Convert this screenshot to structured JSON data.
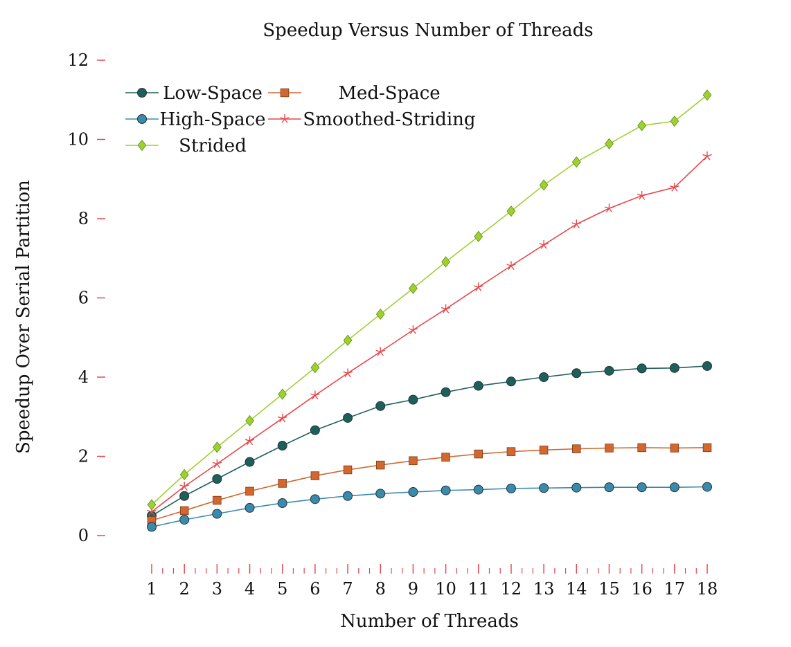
{
  "chart_data": {
    "type": "line",
    "title": "Speedup Versus Number of Threads",
    "xlabel": "Number of Threads",
    "ylabel": "Speedup Over Serial Partition",
    "x": [
      1,
      2,
      3,
      4,
      5,
      6,
      7,
      8,
      9,
      10,
      11,
      12,
      13,
      14,
      15,
      16,
      17,
      18
    ],
    "xlim": [
      1,
      18
    ],
    "ylim": [
      -0.8,
      12.4
    ],
    "yticks": [
      0,
      2,
      4,
      6,
      8,
      10,
      12
    ],
    "grid": false,
    "legend_position": "top-left",
    "axis_tick_color": "#e8474b",
    "series": [
      {
        "name": "Low-Space",
        "color": "#1e5f5b",
        "marker": "circle",
        "values": [
          0.5,
          1.0,
          1.43,
          1.86,
          2.27,
          2.66,
          2.97,
          3.27,
          3.43,
          3.62,
          3.78,
          3.89,
          4.0,
          4.1,
          4.16,
          4.22,
          4.23,
          4.28
        ]
      },
      {
        "name": "Med-Space",
        "color": "#d2672f",
        "marker": "square",
        "values": [
          0.38,
          0.63,
          0.89,
          1.12,
          1.32,
          1.51,
          1.66,
          1.78,
          1.89,
          1.98,
          2.06,
          2.12,
          2.16,
          2.19,
          2.21,
          2.22,
          2.21,
          2.22
        ]
      },
      {
        "name": "High-Space",
        "color": "#3a8aac",
        "marker": "circle",
        "values": [
          0.22,
          0.4,
          0.55,
          0.7,
          0.82,
          0.92,
          1.0,
          1.06,
          1.1,
          1.14,
          1.16,
          1.19,
          1.2,
          1.21,
          1.22,
          1.22,
          1.22,
          1.23
        ]
      },
      {
        "name": "Smoothed-Striding",
        "color": "#e8474b",
        "marker": "star",
        "values": [
          0.6,
          1.24,
          1.81,
          2.39,
          2.96,
          3.54,
          4.1,
          4.64,
          5.19,
          5.72,
          6.27,
          6.81,
          7.34,
          7.86,
          8.26,
          8.58,
          8.79,
          9.58
        ]
      },
      {
        "name": "Strided",
        "color": "#9ed12f",
        "marker": "diamond",
        "values": [
          0.78,
          1.54,
          2.23,
          2.9,
          3.57,
          4.24,
          4.93,
          5.59,
          6.24,
          6.91,
          7.55,
          8.19,
          8.85,
          9.43,
          9.89,
          10.35,
          10.46,
          11.12
        ]
      }
    ]
  }
}
